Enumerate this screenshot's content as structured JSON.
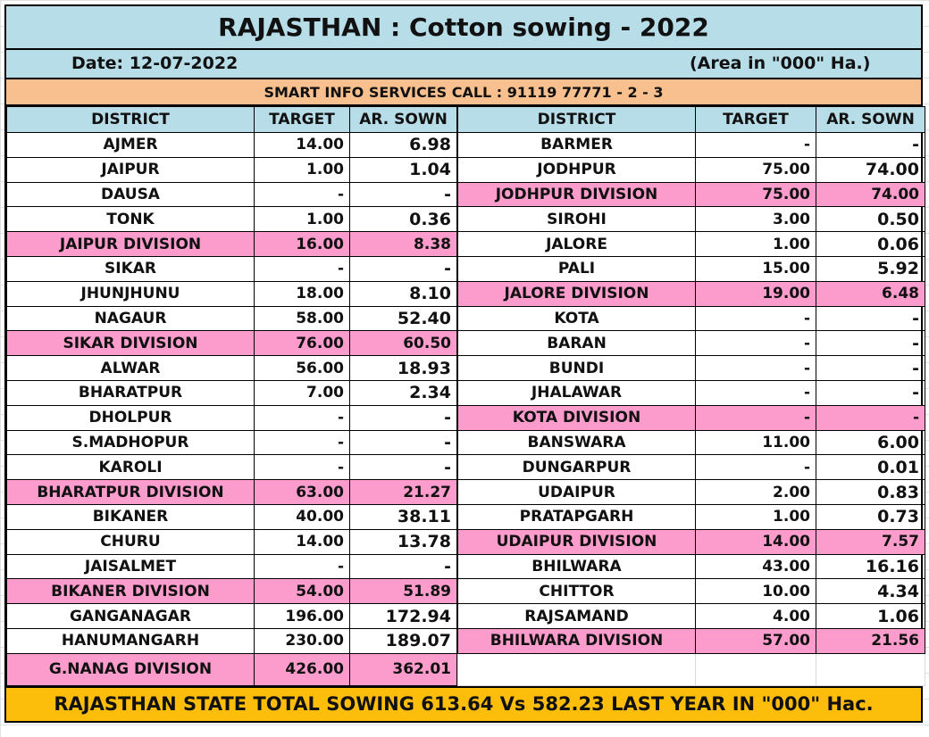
{
  "header": {
    "title": "RAJASTHAN : Cotton sowing - 2022",
    "date": "Date: 12-07-2022",
    "unit": "(Area in \"000\" Ha.)",
    "contact": "SMART INFO SERVICES CALL : 91119 77771 - 2 - 3"
  },
  "columns": {
    "district": "DISTRICT",
    "target": "TARGET",
    "sown": "AR. SOWN"
  },
  "colors": {
    "header_bg": "#b7dde8",
    "contact_bg": "#f8c08e",
    "division_bg": "#fb9ccc",
    "footer_bg": "#fdbd0b"
  },
  "left_rows": [
    {
      "district": "AJMER",
      "target": "14.00",
      "sown": "6.98",
      "division": false
    },
    {
      "district": "JAIPUR",
      "target": "1.00",
      "sown": "1.04",
      "division": false
    },
    {
      "district": "DAUSA",
      "target": "-",
      "sown": "-",
      "division": false
    },
    {
      "district": "TONK",
      "target": "1.00",
      "sown": "0.36",
      "division": false
    },
    {
      "district": "JAIPUR DIVISION",
      "target": "16.00",
      "sown": "8.38",
      "division": true
    },
    {
      "district": "SIKAR",
      "target": "-",
      "sown": "-",
      "division": false
    },
    {
      "district": "JHUNJHUNU",
      "target": "18.00",
      "sown": "8.10",
      "division": false
    },
    {
      "district": "NAGAUR",
      "target": "58.00",
      "sown": "52.40",
      "division": false
    },
    {
      "district": "SIKAR DIVISION",
      "target": "76.00",
      "sown": "60.50",
      "division": true
    },
    {
      "district": "ALWAR",
      "target": "56.00",
      "sown": "18.93",
      "division": false
    },
    {
      "district": "BHARATPUR",
      "target": "7.00",
      "sown": "2.34",
      "division": false
    },
    {
      "district": "DHOLPUR",
      "target": "-",
      "sown": "-",
      "division": false
    },
    {
      "district": "S.MADHOPUR",
      "target": "-",
      "sown": "-",
      "division": false
    },
    {
      "district": "KAROLI",
      "target": "-",
      "sown": "-",
      "division": false
    },
    {
      "district": "BHARATPUR DIVISION",
      "target": "63.00",
      "sown": "21.27",
      "division": true
    },
    {
      "district": "BIKANER",
      "target": "40.00",
      "sown": "38.11",
      "division": false
    },
    {
      "district": "CHURU",
      "target": "14.00",
      "sown": "13.78",
      "division": false
    },
    {
      "district": "JAISALMET",
      "target": "-",
      "sown": "-",
      "division": false
    },
    {
      "district": "BIKANER DIVISION",
      "target": "54.00",
      "sown": "51.89",
      "division": true
    },
    {
      "district": "GANGANAGAR",
      "target": "196.00",
      "sown": "172.94",
      "division": false
    },
    {
      "district": "HANUMANGARH",
      "target": "230.00",
      "sown": "189.07",
      "division": false
    },
    {
      "district": "G.NANAG DIVISION",
      "target": "426.00",
      "sown": "362.01",
      "division": true
    }
  ],
  "right_rows": [
    {
      "district": "BARMER",
      "target": "-",
      "sown": "-",
      "division": false
    },
    {
      "district": "JODHPUR",
      "target": "75.00",
      "sown": "74.00",
      "division": false
    },
    {
      "district": "JODHPUR DIVISION",
      "target": "75.00",
      "sown": "74.00",
      "division": true
    },
    {
      "district": "SIROHI",
      "target": "3.00",
      "sown": "0.50",
      "division": false
    },
    {
      "district": "JALORE",
      "target": "1.00",
      "sown": "0.06",
      "division": false
    },
    {
      "district": "PALI",
      "target": "15.00",
      "sown": "5.92",
      "division": false
    },
    {
      "district": "JALORE DIVISION",
      "target": "19.00",
      "sown": "6.48",
      "division": true
    },
    {
      "district": "KOTA",
      "target": "-",
      "sown": "-",
      "division": false
    },
    {
      "district": "BARAN",
      "target": "-",
      "sown": "-",
      "division": false
    },
    {
      "district": "BUNDI",
      "target": "-",
      "sown": "-",
      "division": false
    },
    {
      "district": "JHALAWAR",
      "target": "-",
      "sown": "-",
      "division": false
    },
    {
      "district": "KOTA DIVISION",
      "target": "-",
      "sown": "-",
      "division": true
    },
    {
      "district": "BANSWARA",
      "target": "11.00",
      "sown": "6.00",
      "division": false
    },
    {
      "district": "DUNGARPUR",
      "target": "-",
      "sown": "0.01",
      "division": false
    },
    {
      "district": "UDAIPUR",
      "target": "2.00",
      "sown": "0.83",
      "division": false
    },
    {
      "district": "PRATAPGARH",
      "target": "1.00",
      "sown": "0.73",
      "division": false
    },
    {
      "district": "UDAIPUR DIVISION",
      "target": "14.00",
      "sown": "7.57",
      "division": true
    },
    {
      "district": "BHILWARA",
      "target": "43.00",
      "sown": "16.16",
      "division": false
    },
    {
      "district": "CHITTOR",
      "target": "10.00",
      "sown": "4.34",
      "division": false
    },
    {
      "district": "RAJSAMAND",
      "target": "4.00",
      "sown": "1.06",
      "division": false
    },
    {
      "district": "BHILWARA DIVISION",
      "target": "57.00",
      "sown": "21.56",
      "division": true
    },
    {
      "district": "",
      "target": "",
      "sown": "",
      "division": false,
      "blank": true
    }
  ],
  "footer": {
    "total": "RAJASTHAN STATE TOTAL SOWING 613.64 Vs 582.23 LAST YEAR IN \"000\" Hac."
  }
}
